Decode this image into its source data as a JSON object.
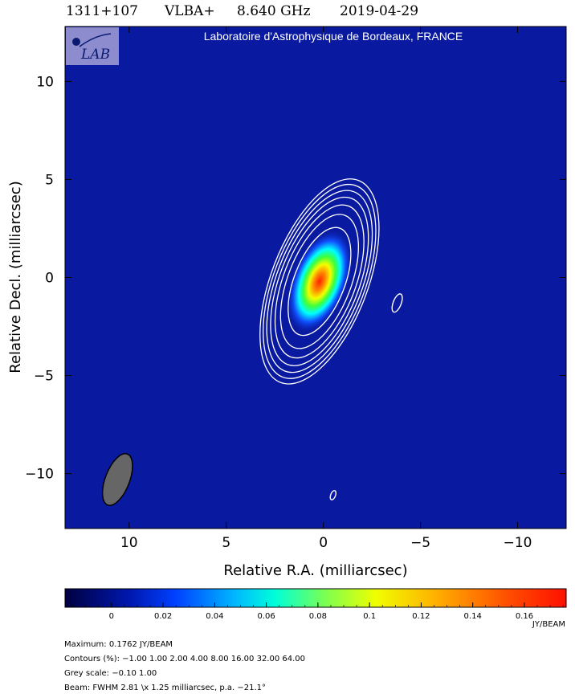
{
  "header": {
    "source": "1311+107",
    "array": "VLBA+",
    "frequency": "8.640 GHz",
    "date": "2019-04-29"
  },
  "lab_credit": "Laboratoire d'Astrophysique de Bordeaux, FRANCE",
  "logo": {
    "text": "LAB"
  },
  "chart_data": {
    "type": "heatmap",
    "xlabel": "Relative R.A. (milliarcsec)",
    "ylabel": "Relative Decl. (milliarcsec)",
    "xlim": [
      13.3,
      -12.5
    ],
    "ylim": [
      -12.8,
      12.8
    ],
    "x_ticks": [
      10,
      5,
      0,
      -5,
      -10
    ],
    "y_ticks": [
      10,
      5,
      0,
      -5,
      -10
    ],
    "x_tick_labels": [
      "10",
      "5",
      "0",
      "−5",
      "−10"
    ],
    "y_tick_labels": [
      "10",
      "5",
      "0",
      "−5",
      "−10"
    ],
    "background_color": "#0a1aa0",
    "source_peak": {
      "x": 0.2,
      "y": -0.2,
      "value": 0.1762
    },
    "contour_levels_percent": [
      1.0,
      2.0,
      4.0,
      8.0,
      16.0,
      32.0,
      64.0
    ],
    "extra_contours": [
      {
        "x": -3.8,
        "y": -1.3,
        "level_percent": 1.0
      },
      {
        "x": -0.5,
        "y": -11.1,
        "level_percent": 1.0
      }
    ],
    "beam": {
      "x": 10.6,
      "y": -10.3,
      "major": 2.81,
      "minor": 1.25,
      "pa": -21.1,
      "color": "#666666"
    },
    "colorbar": {
      "min": -0.018,
      "max": 0.1762,
      "ticks": [
        0,
        0.02,
        0.04,
        0.06,
        0.08,
        0.1,
        0.12,
        0.14,
        0.16
      ],
      "tick_labels": [
        "0",
        "0.02",
        "0.04",
        "0.06",
        "0.08",
        "0.1",
        "0.12",
        "0.14",
        "0.16"
      ],
      "unit": "JY/BEAM"
    }
  },
  "footer": {
    "maximum": "Maximum: 0.1762 JY/BEAM",
    "contours": "Contours (%): −1.00 1.00 2.00 4.00 8.00 16.00 32.00 64.00",
    "grey_scale": "Grey scale: −0.10 1.00",
    "beam": "Beam: FWHM 2.81 \\x 1.25 milliarcsec, p.a. −21.1°"
  }
}
